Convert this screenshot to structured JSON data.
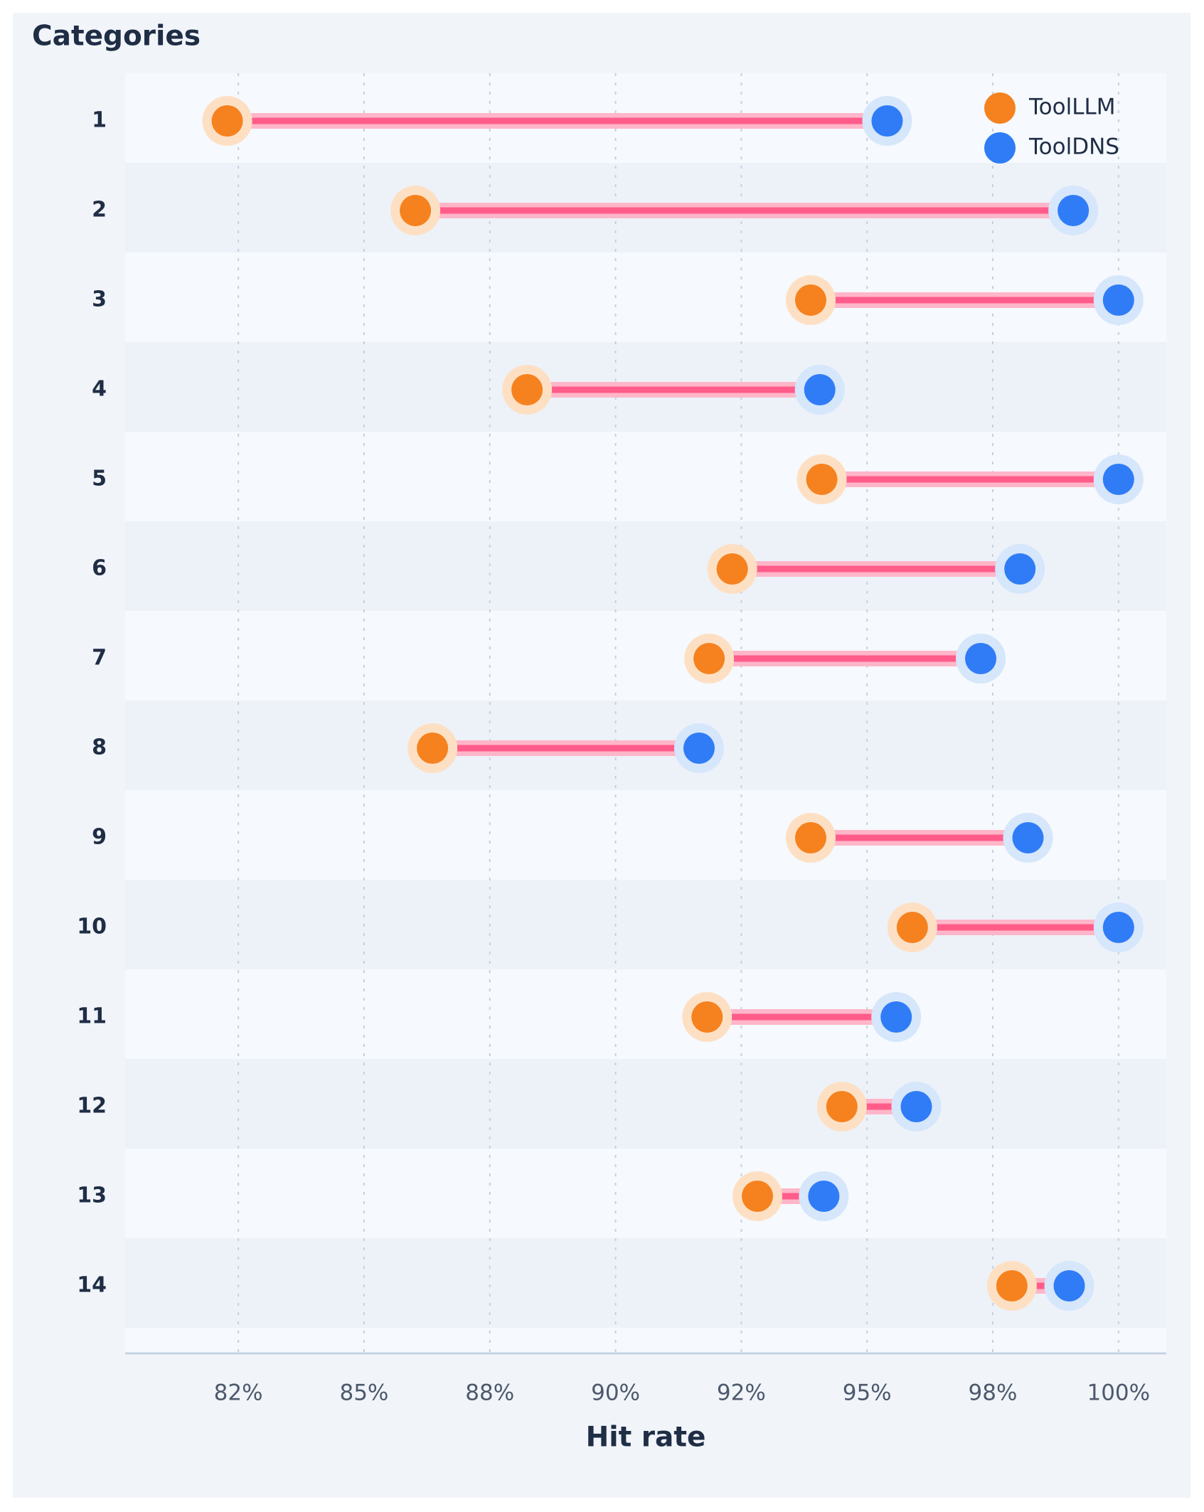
{
  "chart_data": {
    "type": "dumbbell",
    "y_title": "Categories",
    "xlabel": "Hit rate",
    "categories": [
      "1",
      "2",
      "3",
      "4",
      "5",
      "6",
      "7",
      "8",
      "9",
      "10",
      "11",
      "12",
      "13",
      "14"
    ],
    "x_ticks": [
      82.5,
      85,
      87.5,
      90,
      92.5,
      95,
      97.5,
      100
    ],
    "x_tick_labels": [
      "82%",
      "85%",
      "88%",
      "90%",
      "92%",
      "95%",
      "98%",
      "100%"
    ],
    "xlim": [
      80.25,
      100.95
    ],
    "grid": "vertical-dashed",
    "legend_position": "top-right",
    "series": [
      {
        "name": "ToolLLM",
        "color": "#f5821f",
        "values": [
          82.28,
          86.02,
          93.88,
          88.24,
          94.1,
          92.32,
          91.86,
          86.36,
          93.88,
          95.9,
          91.82,
          94.5,
          92.82,
          97.88
        ]
      },
      {
        "name": "ToolDNS",
        "color": "#2f7cf6",
        "values": [
          95.4,
          99.1,
          100.0,
          94.06,
          100.0,
          98.04,
          97.26,
          91.66,
          98.2,
          100.0,
          95.58,
          95.98,
          94.14,
          99.02
        ]
      }
    ],
    "connector_color": "#ff5c8a"
  }
}
